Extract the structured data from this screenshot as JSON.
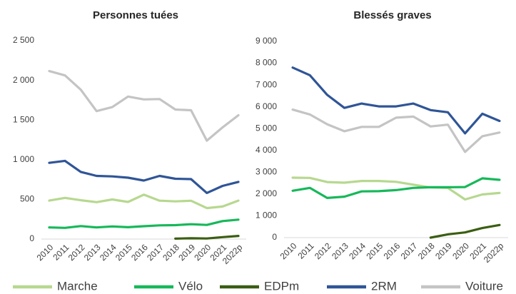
{
  "chart_data": [
    {
      "type": "line",
      "title": "Personnes tuées",
      "categories": [
        "2010",
        "2011",
        "2012",
        "2013",
        "2014",
        "2015",
        "2016",
        "2017",
        "2018",
        "2019",
        "2020",
        "2021",
        "2022p"
      ],
      "ylim": [
        0,
        2500
      ],
      "yticks": [
        0,
        500,
        {
          "value": 1000,
          "label": "1 000"
        },
        {
          "value": 1500,
          "label": "1 500"
        },
        {
          "value": 2000,
          "label": "2 000"
        },
        {
          "value": 2500,
          "label": "2 500"
        }
      ],
      "grid": false,
      "series": [
        {
          "name": "Marche",
          "color": "#b7d88f",
          "values": [
            485,
            519,
            489,
            465,
            499,
            468,
            559,
            484,
            475,
            483,
            390,
            410,
            485
          ]
        },
        {
          "name": "Vélo",
          "color": "#17b85a",
          "values": [
            147,
            141,
            164,
            147,
            159,
            149,
            162,
            173,
            175,
            187,
            178,
            227,
            245
          ]
        },
        {
          "name": "EDPm",
          "color": "#3b5e12",
          "values": [
            null,
            null,
            null,
            null,
            null,
            null,
            null,
            null,
            5,
            10,
            7,
            24,
            40
          ]
        },
        {
          "name": "2RM",
          "color": "#2f5597",
          "values": [
            960,
            986,
            846,
            796,
            790,
            773,
            737,
            796,
            760,
            755,
            581,
            670,
            720
          ]
        },
        {
          "name": "Voiture",
          "color": "#c4c4c4",
          "values": [
            2117,
            2062,
            1882,
            1612,
            1663,
            1796,
            1760,
            1764,
            1632,
            1623,
            1240,
            1407,
            1560
          ]
        }
      ]
    },
    {
      "type": "line",
      "title": "Blessés graves",
      "categories": [
        "2010",
        "2011",
        "2012",
        "2013",
        "2014",
        "2015",
        "2016",
        "2017",
        "2018",
        "2019",
        "2020",
        "2021",
        "2022p"
      ],
      "ylim": [
        0,
        9000
      ],
      "yticks": [
        0,
        {
          "value": 1000,
          "label": "1 000"
        },
        {
          "value": 2000,
          "label": "2 000"
        },
        {
          "value": 3000,
          "label": "3 000"
        },
        {
          "value": 4000,
          "label": "4 000"
        },
        {
          "value": 5000,
          "label": "5 000"
        },
        {
          "value": 6000,
          "label": "6 000"
        },
        {
          "value": 7000,
          "label": "7 000"
        },
        {
          "value": 8000,
          "label": "8 000"
        },
        {
          "value": 9000,
          "label": "9 000"
        }
      ],
      "grid": false,
      "series": [
        {
          "name": "Marche",
          "color": "#b7d88f",
          "values": [
            2750,
            2740,
            2550,
            2520,
            2600,
            2600,
            2560,
            2430,
            2300,
            2280,
            1750,
            1980,
            2050
          ]
        },
        {
          "name": "Vélo",
          "color": "#17b85a",
          "values": [
            2150,
            2280,
            1820,
            1880,
            2120,
            2130,
            2180,
            2280,
            2310,
            2310,
            2320,
            2720,
            2650
          ]
        },
        {
          "name": "EDPm",
          "color": "#3b5e12",
          "values": [
            null,
            null,
            null,
            null,
            null,
            null,
            null,
            null,
            0,
            150,
            240,
            440,
            580
          ]
        },
        {
          "name": "2RM",
          "color": "#2f5597",
          "values": [
            7800,
            7450,
            6550,
            5950,
            6150,
            6020,
            6020,
            6150,
            5850,
            5750,
            4780,
            5680,
            5350
          ]
        },
        {
          "name": "Voiture",
          "color": "#c4c4c4",
          "values": [
            5870,
            5650,
            5200,
            4880,
            5080,
            5080,
            5500,
            5550,
            5100,
            5180,
            3930,
            4650,
            4820
          ]
        }
      ]
    }
  ]
}
